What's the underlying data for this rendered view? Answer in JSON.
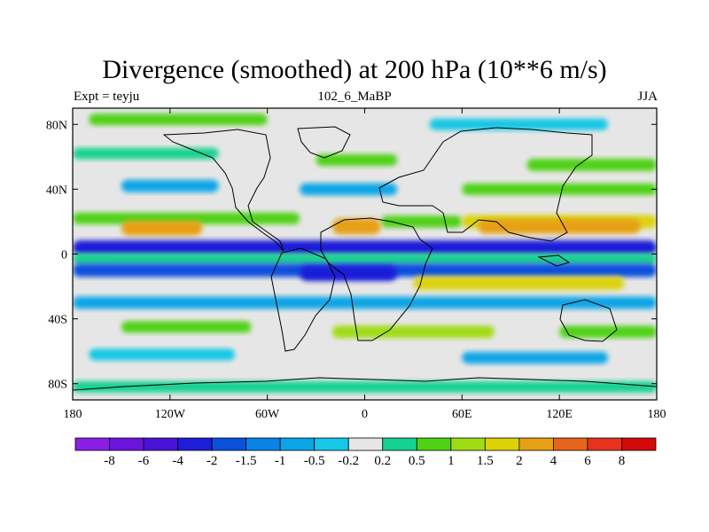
{
  "chart_data": {
    "type": "heatmap",
    "title": "Divergence (smoothed) at 200 hPa (10**6 m/s)",
    "left_label": "Expt = teyju",
    "center_label": "102_6_MaBP",
    "right_label": "JJA",
    "xlim": [
      -180,
      180
    ],
    "ylim": [
      -90,
      90
    ],
    "x_ticks": [
      {
        "value": -180,
        "label": "180"
      },
      {
        "value": -120,
        "label": "120W"
      },
      {
        "value": -60,
        "label": "60W"
      },
      {
        "value": 0,
        "label": "0"
      },
      {
        "value": 60,
        "label": "60E"
      },
      {
        "value": 120,
        "label": "120E"
      },
      {
        "value": 180,
        "label": "180"
      }
    ],
    "y_ticks": [
      {
        "value": 80,
        "label": "80N"
      },
      {
        "value": 40,
        "label": "40N"
      },
      {
        "value": 0,
        "label": "0"
      },
      {
        "value": -40,
        "label": "40S"
      },
      {
        "value": -80,
        "label": "80S"
      }
    ],
    "colorbar": {
      "labels": [
        "-8",
        "-6",
        "-4",
        "-2",
        "-1.5",
        "-1",
        "-0.5",
        "-0.2",
        "0.2",
        "0.5",
        "1",
        "1.5",
        "2",
        "4",
        "6",
        "8"
      ],
      "colors": [
        "#8a1ee6",
        "#6a14dc",
        "#4a14d8",
        "#1e1ed8",
        "#0a50dc",
        "#0a82e6",
        "#0aa6e6",
        "#14c8e6",
        "#e6e6e6",
        "#14d290",
        "#50d214",
        "#a0dc14",
        "#dcd20a",
        "#e6a014",
        "#e6641e",
        "#e6321e",
        "#d20a0a"
      ]
    },
    "bands": [
      {
        "lat": 83,
        "lon_from": -170,
        "lon_to": -60,
        "value": 0.5
      },
      {
        "lat": 80,
        "lon_from": 40,
        "lon_to": 150,
        "value": -0.5
      },
      {
        "lat": 62,
        "lon_from": -180,
        "lon_to": -90,
        "value": 0.3
      },
      {
        "lat": 58,
        "lon_from": -30,
        "lon_to": 20,
        "value": 0.6
      },
      {
        "lat": 55,
        "lon_from": 100,
        "lon_to": 180,
        "value": 0.8
      },
      {
        "lat": 42,
        "lon_from": -150,
        "lon_to": -90,
        "value": -1.0
      },
      {
        "lat": 40,
        "lon_from": -40,
        "lon_to": 20,
        "value": -0.8
      },
      {
        "lat": 40,
        "lon_from": 60,
        "lon_to": 180,
        "value": 0.5
      },
      {
        "lat": 22,
        "lon_from": -180,
        "lon_to": -40,
        "value": 0.6
      },
      {
        "lat": 20,
        "lon_from": 10,
        "lon_to": 60,
        "value": 0.7
      },
      {
        "lat": 20,
        "lon_from": 60,
        "lon_to": 180,
        "value": 1.5
      },
      {
        "lat": 17,
        "lon_from": -20,
        "lon_to": 10,
        "value": 3.0
      },
      {
        "lat": 16,
        "lon_from": -150,
        "lon_to": -100,
        "value": 2.5
      },
      {
        "lat": 17,
        "lon_from": 70,
        "lon_to": 170,
        "value": 2.2
      },
      {
        "lat": 4,
        "lon_from": -180,
        "lon_to": 180,
        "value": -2.2
      },
      {
        "lat": -3,
        "lon_from": -180,
        "lon_to": 180,
        "value": 0.4
      },
      {
        "lat": -10,
        "lon_from": -180,
        "lon_to": 180,
        "value": -1.6
      },
      {
        "lat": -12,
        "lon_from": -40,
        "lon_to": 20,
        "value": -2.5
      },
      {
        "lat": -18,
        "lon_from": 30,
        "lon_to": 160,
        "value": 1.5
      },
      {
        "lat": -30,
        "lon_from": -180,
        "lon_to": 180,
        "value": -1.0
      },
      {
        "lat": -45,
        "lon_from": -150,
        "lon_to": -70,
        "value": 0.5
      },
      {
        "lat": -48,
        "lon_from": -20,
        "lon_to": 80,
        "value": 1.0
      },
      {
        "lat": -48,
        "lon_from": 120,
        "lon_to": 180,
        "value": 0.8
      },
      {
        "lat": -62,
        "lon_from": -170,
        "lon_to": -80,
        "value": -0.5
      },
      {
        "lat": -64,
        "lon_from": 60,
        "lon_to": 150,
        "value": -0.6
      },
      {
        "lat": -82,
        "lon_from": -180,
        "lon_to": 180,
        "value": 0.4
      }
    ]
  }
}
